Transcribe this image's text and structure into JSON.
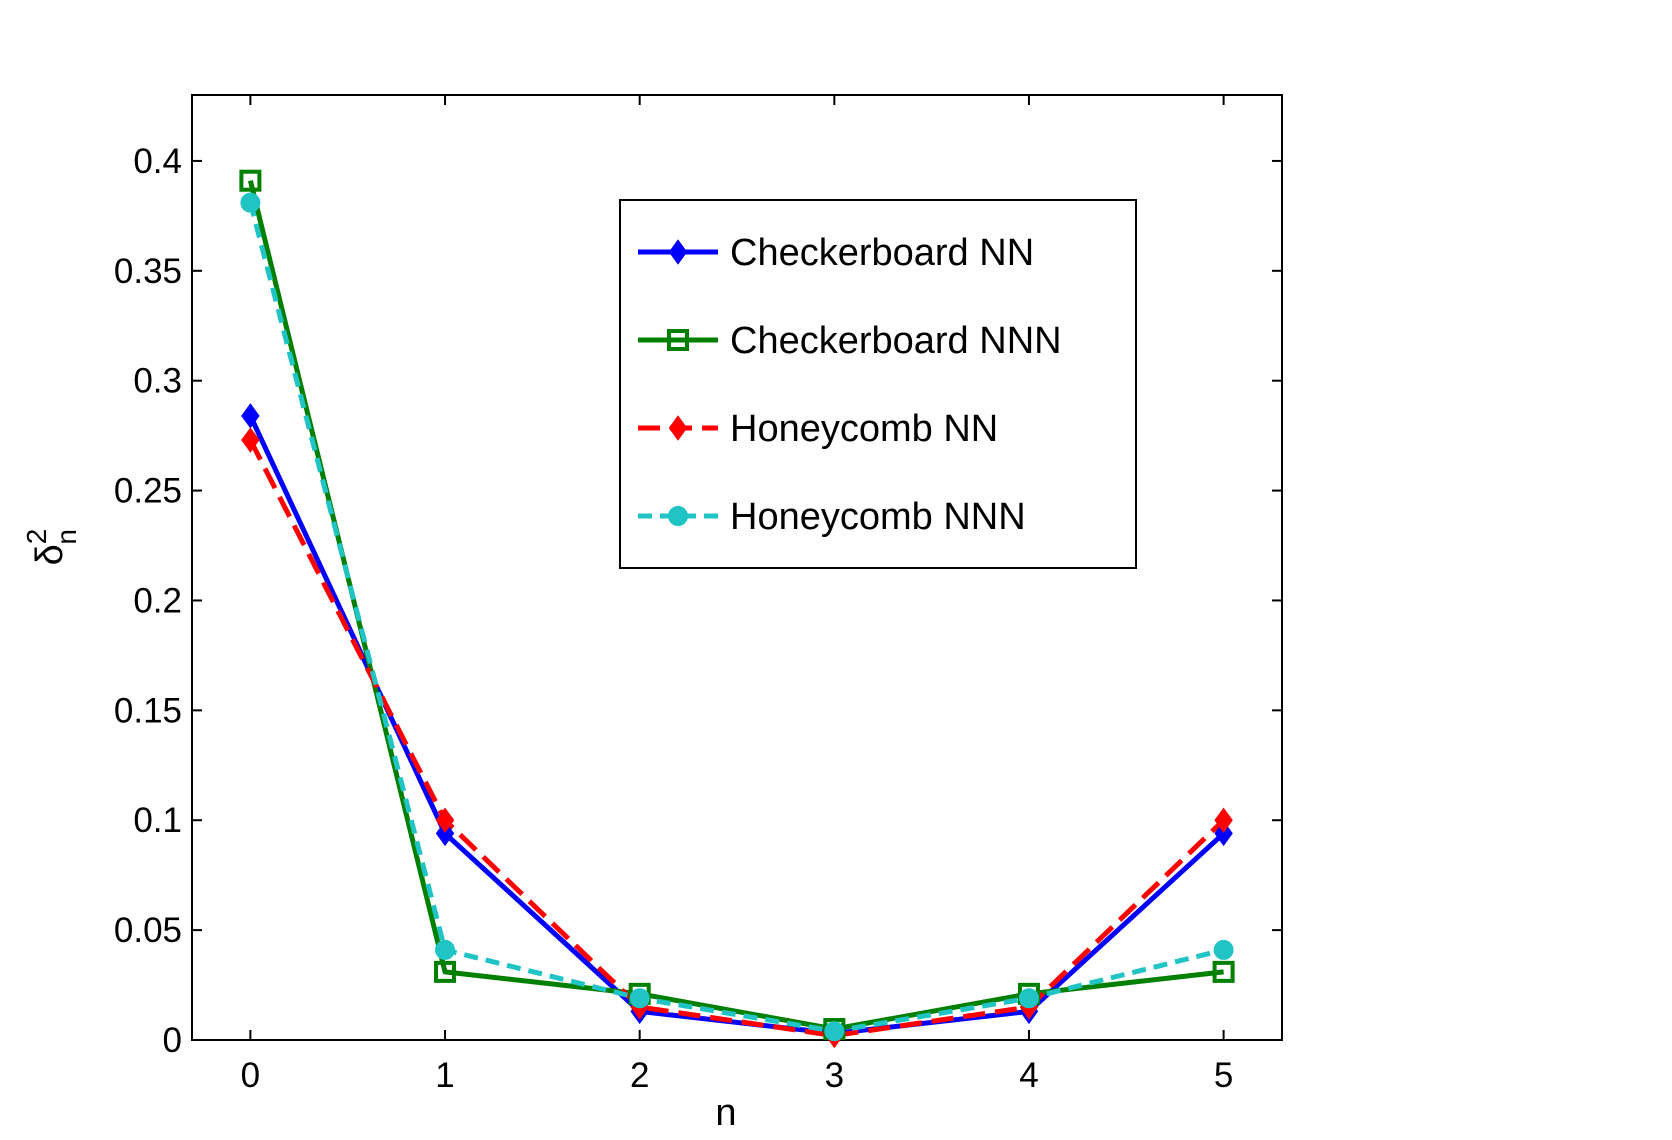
{
  "chart_data": {
    "type": "line",
    "title": "",
    "xlabel": "n",
    "ylabel_symbol": "δ",
    "ylabel_superscript": "2",
    "ylabel_subscript": "n",
    "xlim": [
      -0.3,
      5.3
    ],
    "ylim": [
      0,
      0.43
    ],
    "xticks": [
      0,
      1,
      2,
      3,
      4,
      5
    ],
    "xtick_labels": [
      "0",
      "1",
      "2",
      "3",
      "4",
      "5"
    ],
    "yticks": [
      0,
      0.05,
      0.1,
      0.15,
      0.2,
      0.25,
      0.3,
      0.35,
      0.4
    ],
    "ytick_labels": [
      "0",
      "0.05",
      "0.1",
      "0.15",
      "0.2",
      "0.25",
      "0.3",
      "0.35",
      "0.4"
    ],
    "grid": false,
    "legend_position": "top-right",
    "x": [
      0,
      1,
      2,
      3,
      4,
      5
    ],
    "series": [
      {
        "name": "Checkerboard NN",
        "color": "#0000ff",
        "style": "solid",
        "marker": "diamond",
        "values": [
          0.284,
          0.094,
          0.013,
          0.003,
          0.013,
          0.094
        ]
      },
      {
        "name": "Checkerboard NNN",
        "color": "#007f00",
        "style": "solid",
        "marker": "square",
        "values": [
          0.391,
          0.031,
          0.021,
          0.005,
          0.021,
          0.031
        ]
      },
      {
        "name": "Honeycomb NN",
        "color": "#ff0000",
        "style": "dashed",
        "marker": "diamond",
        "values": [
          0.273,
          0.1,
          0.015,
          0.002,
          0.015,
          0.1
        ]
      },
      {
        "name": "Honeycomb NNN",
        "color": "#21c4c4",
        "style": "dashed",
        "marker": "circle",
        "values": [
          0.381,
          0.041,
          0.019,
          0.004,
          0.019,
          0.041
        ]
      }
    ]
  }
}
